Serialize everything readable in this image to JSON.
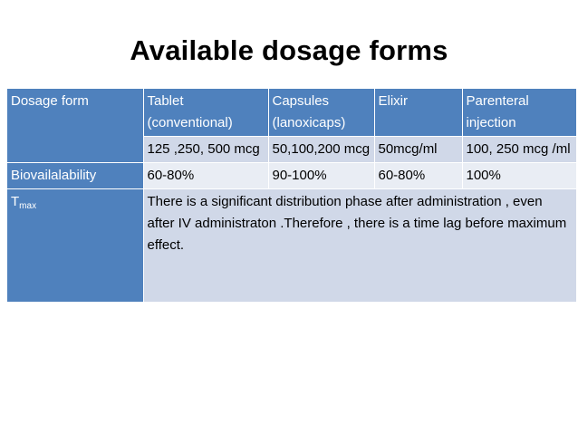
{
  "title": "Available dosage forms",
  "table": {
    "header": {
      "row_label": "Dosage form",
      "columns": [
        "Tablet (conventional)",
        "Capsules (lanoxicaps)",
        "Elixir",
        "Parenteral injection"
      ]
    },
    "strength_row": [
      "125 ,250, 500 mcg",
      "50,100,200 mcg",
      "50mcg/ml",
      "100, 250 mcg /ml"
    ],
    "bioavailability": {
      "label": "Biovailalability",
      "values": [
        "60-80%",
        "90-100%",
        "60-80%",
        "100%"
      ]
    },
    "tmax": {
      "label_main": "T",
      "label_sub": "max",
      "text": "There is a significant distribution phase after administration , even after IV administraton .Therefore , there is a time lag before maximum effect."
    }
  }
}
